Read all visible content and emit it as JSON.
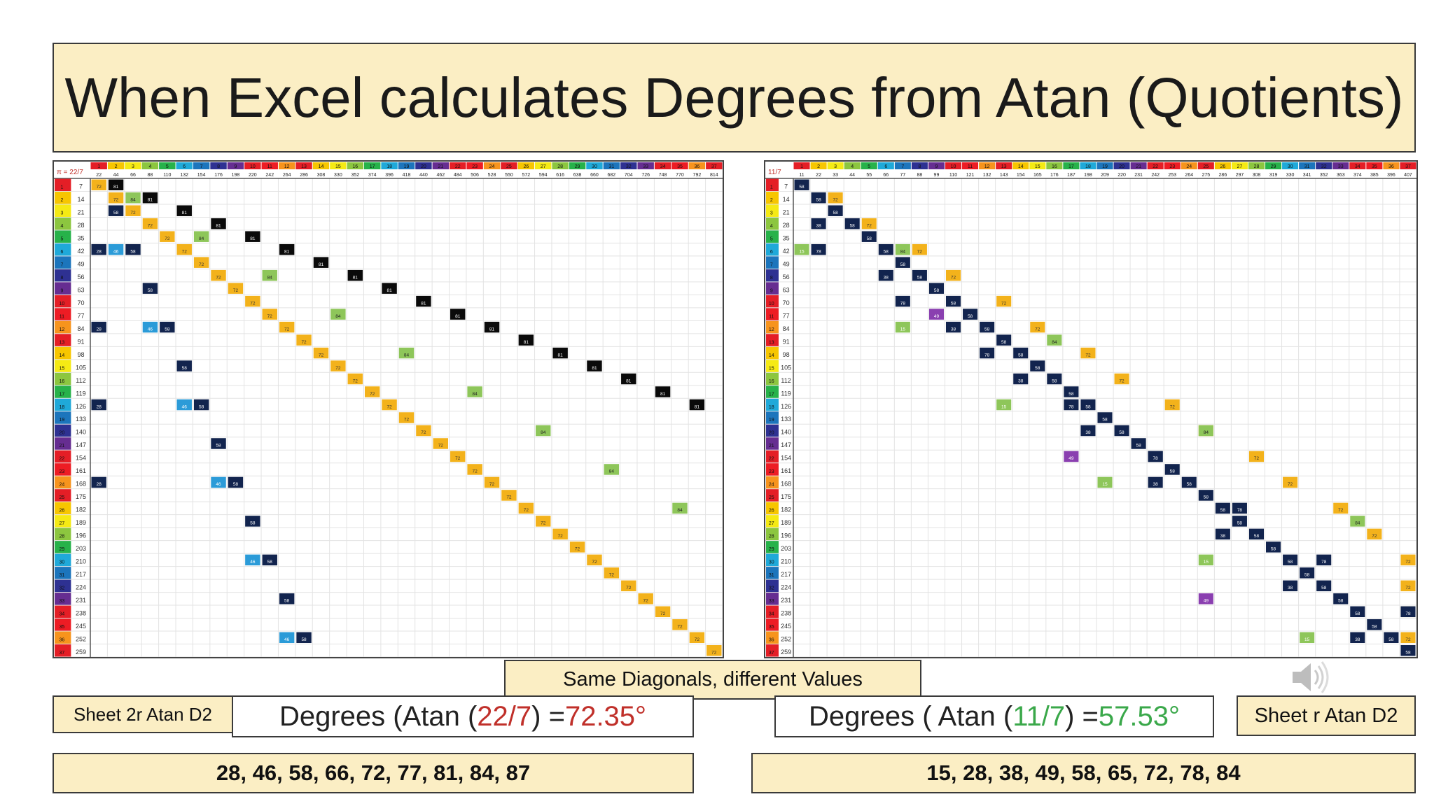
{
  "title": "When Excel calculates Degrees from Atan (Quotients)",
  "left_sheet": {
    "corner_label": "π = 22/7",
    "header_step": 22,
    "row_step": 7,
    "tab_label": "Sheet 2r Atan D2",
    "formula": {
      "prefix": "Degrees (Atan (",
      "fraction": "22/7",
      "middle": ") = ",
      "result": "72.35°"
    },
    "values": "28, 46, 58, 66, 72, 77, 81, 84, 87"
  },
  "right_sheet": {
    "corner_label": "11/7",
    "header_step": 11,
    "row_step": 7,
    "tab_label": "Sheet r Atan D2",
    "formula": {
      "prefix": "Degrees ( Atan (",
      "fraction": "11/7",
      "middle": ") = ",
      "result": "57.53°"
    },
    "values": "15, 28, 38, 49, 58, 65, 72, 78, 84"
  },
  "center_caption": "Same Diagonals, different Values",
  "colors": {
    "title_bg": "#fbeec4",
    "red_text": "#c0302a",
    "green_text": "#3aa84a",
    "cell_yellow": "#f3b21b",
    "cell_black": "#0a0a0a",
    "cell_navy": "#12244e",
    "cell_green": "#8ec65a",
    "cell_lightblue": "#2b9bd8",
    "cell_purple": "#8a3fb0"
  },
  "icons": {
    "speaker": "speaker-icon"
  }
}
